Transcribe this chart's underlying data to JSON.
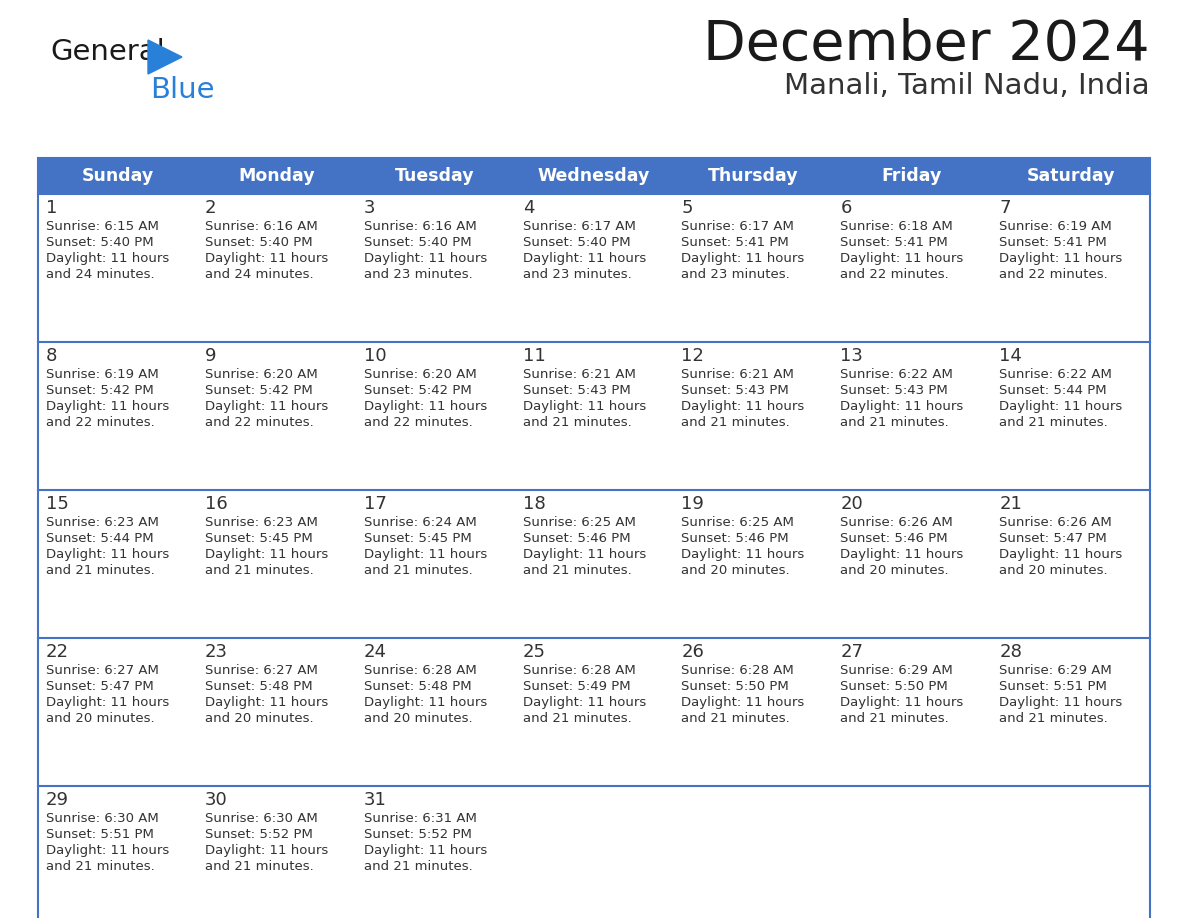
{
  "title": "December 2024",
  "subtitle": "Manali, Tamil Nadu, India",
  "header_color": "#4472C4",
  "header_text_color": "#FFFFFF",
  "cell_bg_color": "#FFFFFF",
  "row_separator_color": "#4472C4",
  "text_color": "#333333",
  "border_color": "#4472C4",
  "days_of_week": [
    "Sunday",
    "Monday",
    "Tuesday",
    "Wednesday",
    "Thursday",
    "Friday",
    "Saturday"
  ],
  "weeks": [
    [
      {
        "day": 1,
        "sunrise": "6:15 AM",
        "sunset": "5:40 PM",
        "daylight": "11 hours and 24 minutes."
      },
      {
        "day": 2,
        "sunrise": "6:16 AM",
        "sunset": "5:40 PM",
        "daylight": "11 hours and 24 minutes."
      },
      {
        "day": 3,
        "sunrise": "6:16 AM",
        "sunset": "5:40 PM",
        "daylight": "11 hours and 23 minutes."
      },
      {
        "day": 4,
        "sunrise": "6:17 AM",
        "sunset": "5:40 PM",
        "daylight": "11 hours and 23 minutes."
      },
      {
        "day": 5,
        "sunrise": "6:17 AM",
        "sunset": "5:41 PM",
        "daylight": "11 hours and 23 minutes."
      },
      {
        "day": 6,
        "sunrise": "6:18 AM",
        "sunset": "5:41 PM",
        "daylight": "11 hours and 22 minutes."
      },
      {
        "day": 7,
        "sunrise": "6:19 AM",
        "sunset": "5:41 PM",
        "daylight": "11 hours and 22 minutes."
      }
    ],
    [
      {
        "day": 8,
        "sunrise": "6:19 AM",
        "sunset": "5:42 PM",
        "daylight": "11 hours and 22 minutes."
      },
      {
        "day": 9,
        "sunrise": "6:20 AM",
        "sunset": "5:42 PM",
        "daylight": "11 hours and 22 minutes."
      },
      {
        "day": 10,
        "sunrise": "6:20 AM",
        "sunset": "5:42 PM",
        "daylight": "11 hours and 22 minutes."
      },
      {
        "day": 11,
        "sunrise": "6:21 AM",
        "sunset": "5:43 PM",
        "daylight": "11 hours and 21 minutes."
      },
      {
        "day": 12,
        "sunrise": "6:21 AM",
        "sunset": "5:43 PM",
        "daylight": "11 hours and 21 minutes."
      },
      {
        "day": 13,
        "sunrise": "6:22 AM",
        "sunset": "5:43 PM",
        "daylight": "11 hours and 21 minutes."
      },
      {
        "day": 14,
        "sunrise": "6:22 AM",
        "sunset": "5:44 PM",
        "daylight": "11 hours and 21 minutes."
      }
    ],
    [
      {
        "day": 15,
        "sunrise": "6:23 AM",
        "sunset": "5:44 PM",
        "daylight": "11 hours and 21 minutes."
      },
      {
        "day": 16,
        "sunrise": "6:23 AM",
        "sunset": "5:45 PM",
        "daylight": "11 hours and 21 minutes."
      },
      {
        "day": 17,
        "sunrise": "6:24 AM",
        "sunset": "5:45 PM",
        "daylight": "11 hours and 21 minutes."
      },
      {
        "day": 18,
        "sunrise": "6:25 AM",
        "sunset": "5:46 PM",
        "daylight": "11 hours and 21 minutes."
      },
      {
        "day": 19,
        "sunrise": "6:25 AM",
        "sunset": "5:46 PM",
        "daylight": "11 hours and 20 minutes."
      },
      {
        "day": 20,
        "sunrise": "6:26 AM",
        "sunset": "5:46 PM",
        "daylight": "11 hours and 20 minutes."
      },
      {
        "day": 21,
        "sunrise": "6:26 AM",
        "sunset": "5:47 PM",
        "daylight": "11 hours and 20 minutes."
      }
    ],
    [
      {
        "day": 22,
        "sunrise": "6:27 AM",
        "sunset": "5:47 PM",
        "daylight": "11 hours and 20 minutes."
      },
      {
        "day": 23,
        "sunrise": "6:27 AM",
        "sunset": "5:48 PM",
        "daylight": "11 hours and 20 minutes."
      },
      {
        "day": 24,
        "sunrise": "6:28 AM",
        "sunset": "5:48 PM",
        "daylight": "11 hours and 20 minutes."
      },
      {
        "day": 25,
        "sunrise": "6:28 AM",
        "sunset": "5:49 PM",
        "daylight": "11 hours and 21 minutes."
      },
      {
        "day": 26,
        "sunrise": "6:28 AM",
        "sunset": "5:50 PM",
        "daylight": "11 hours and 21 minutes."
      },
      {
        "day": 27,
        "sunrise": "6:29 AM",
        "sunset": "5:50 PM",
        "daylight": "11 hours and 21 minutes."
      },
      {
        "day": 28,
        "sunrise": "6:29 AM",
        "sunset": "5:51 PM",
        "daylight": "11 hours and 21 minutes."
      }
    ],
    [
      {
        "day": 29,
        "sunrise": "6:30 AM",
        "sunset": "5:51 PM",
        "daylight": "11 hours and 21 minutes."
      },
      {
        "day": 30,
        "sunrise": "6:30 AM",
        "sunset": "5:52 PM",
        "daylight": "11 hours and 21 minutes."
      },
      {
        "day": 31,
        "sunrise": "6:31 AM",
        "sunset": "5:52 PM",
        "daylight": "11 hours and 21 minutes."
      },
      null,
      null,
      null,
      null
    ]
  ],
  "logo_color_general": "#1a1a1a",
  "logo_color_blue": "#2980D9",
  "logo_triangle_color": "#2980D9",
  "title_color": "#1a1a1a",
  "subtitle_color": "#333333"
}
